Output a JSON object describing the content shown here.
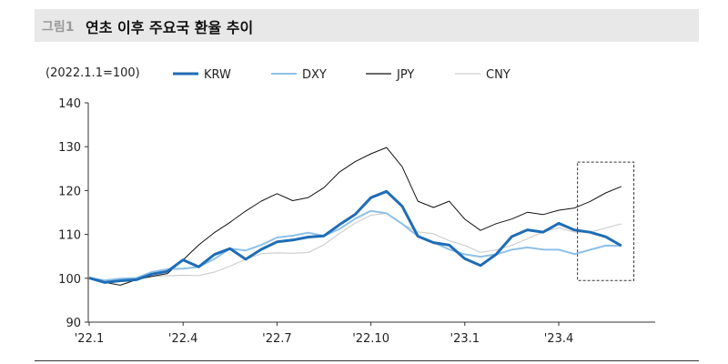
{
  "figure": {
    "label": "그림1",
    "title": "연초 이후 주요국 환율 추이"
  },
  "chart_data": {
    "type": "line",
    "unit_note": "(2022.1.1=100)",
    "ylim": [
      90,
      140
    ],
    "yticks": [
      "140",
      "130",
      "120",
      "110",
      "100",
      "90"
    ],
    "xlim": [
      0,
      20
    ],
    "xticks": [
      {
        "x": 0,
        "label": "'22.1"
      },
      {
        "x": 3,
        "label": "'22.4"
      },
      {
        "x": 6,
        "label": "'22.7"
      },
      {
        "x": 9,
        "label": "'22.10"
      },
      {
        "x": 12,
        "label": "'23.1"
      },
      {
        "x": 15,
        "label": "'23.4"
      }
    ],
    "x": [
      0,
      0.5,
      1,
      1.5,
      2,
      2.5,
      3,
      3.5,
      4,
      4.5,
      5,
      5.5,
      6,
      6.5,
      7,
      7.5,
      8,
      8.5,
      9,
      9.5,
      10,
      10.5,
      11,
      11.5,
      12,
      12.5,
      13,
      13.5,
      14,
      14.5,
      15,
      15.5,
      16,
      16.5,
      17
    ],
    "series": [
      {
        "name": "KRW",
        "color": "#1f6db5",
        "width": 3,
        "values": [
          100,
          99.5,
          100,
          99.8,
          100.5,
          101,
          104,
          103,
          106,
          107,
          104,
          106,
          108,
          109,
          110,
          110,
          112,
          114,
          118,
          120,
          117,
          110,
          108,
          107,
          104,
          103,
          106,
          110,
          111,
          110,
          112,
          111,
          111,
          110,
          107.5
        ]
      },
      {
        "name": "DXY",
        "color": "#8ec1e8",
        "width": 2,
        "values": [
          100,
          100,
          100.5,
          100.2,
          101,
          101.5,
          102,
          103,
          105,
          107,
          106,
          107,
          109,
          110,
          111,
          110,
          111,
          113,
          115,
          115,
          113,
          110,
          108,
          106,
          105,
          105,
          106,
          107,
          107,
          106,
          106,
          105.5,
          107,
          108,
          107.5
        ]
      },
      {
        "name": "JPY",
        "color": "#111111",
        "width": 1,
        "values": [
          100,
          99.5,
          99,
          99.8,
          100,
          100.5,
          104,
          108,
          111,
          113,
          115,
          117,
          119,
          118,
          119,
          121,
          124,
          126,
          128,
          130,
          126,
          118,
          116,
          117,
          113,
          111,
          113,
          114,
          115,
          114,
          115,
          116,
          118,
          120,
          121
        ]
      },
      {
        "name": "CNY",
        "color": "#cfcfcf",
        "width": 1.2,
        "values": [
          100,
          100,
          99.8,
          100,
          100,
          100,
          100.5,
          101,
          102,
          103,
          104,
          105,
          105.5,
          106,
          106.5,
          108,
          110,
          112,
          114,
          115,
          113,
          111,
          110,
          108,
          107,
          106,
          107,
          108,
          109,
          110,
          111,
          110.5,
          111,
          112,
          112.5
        ]
      }
    ]
  }
}
